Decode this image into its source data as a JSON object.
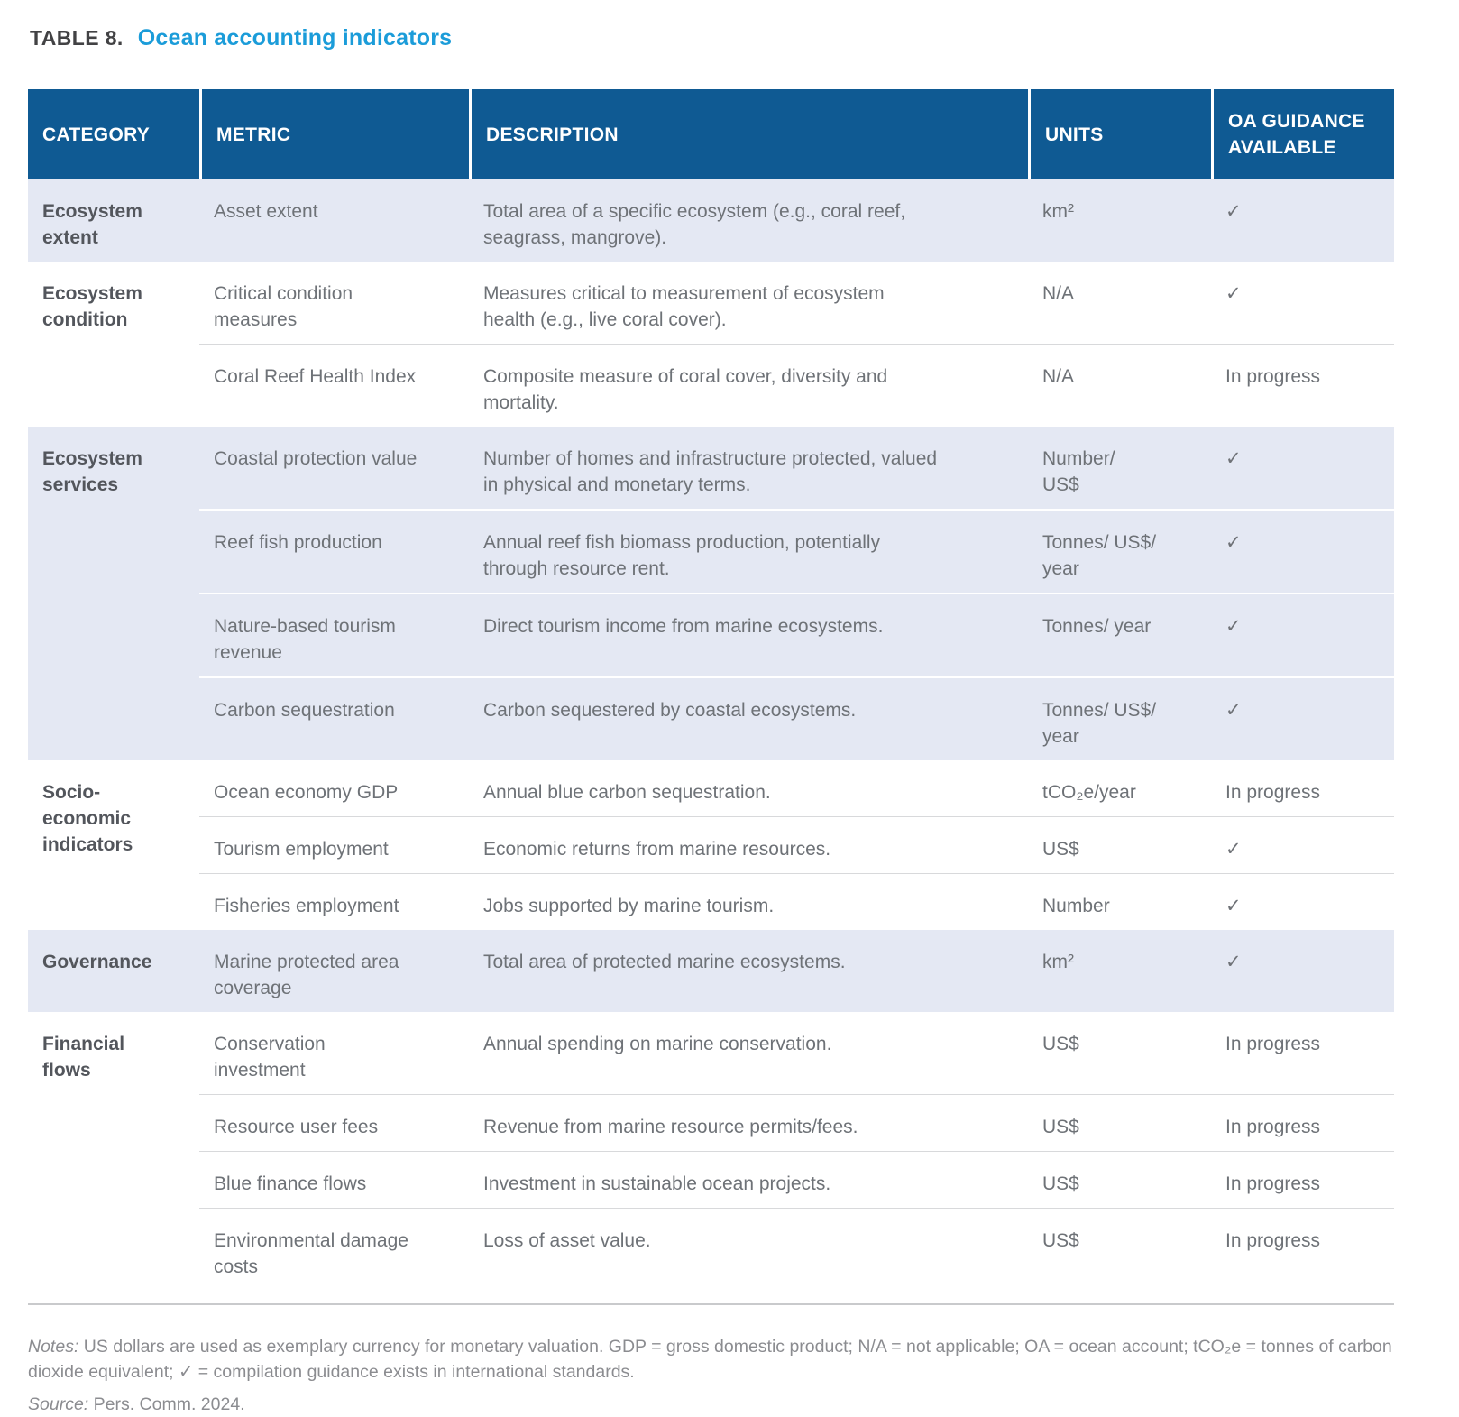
{
  "title": {
    "label": "TABLE 8.",
    "text": "Ocean accounting indicators"
  },
  "colors": {
    "header_bg": "#0F5A93",
    "shaded_row_bg": "#E4E8F3",
    "title_accent": "#1B9CD9",
    "body_text": "#6E7277"
  },
  "table": {
    "columns": [
      "CATEGORY",
      "METRIC",
      "DESCRIPTION",
      "UNITS",
      "OA GUIDANCE\nAVAILABLE"
    ],
    "groups": [
      {
        "category": "Ecosystem\nextent",
        "rows": [
          {
            "metric": "Asset extent",
            "description": "Total area of a specific ecosystem (e.g., coral reef,\nseagrass, mangrove).",
            "units": "km²",
            "guidance": "✓"
          }
        ]
      },
      {
        "category": "Ecosystem\ncondition",
        "rows": [
          {
            "metric": "Critical condition\nmeasures",
            "description": "Measures critical to measurement of ecosystem\nhealth (e.g., live coral cover).",
            "units": "N/A",
            "guidance": "✓"
          },
          {
            "metric": "Coral Reef Health Index",
            "description": "Composite measure of coral cover, diversity and\nmortality.",
            "units": "N/A",
            "guidance": "In progress"
          }
        ]
      },
      {
        "category": "Ecosystem\nservices",
        "rows": [
          {
            "metric": "Coastal protection value",
            "description": "Number of homes and infrastructure protected, valued\nin physical and monetary terms.",
            "units": "Number/\nUS$",
            "guidance": "✓"
          },
          {
            "metric": "Reef fish production",
            "description": "Annual reef fish biomass production, potentially\nthrough resource rent.",
            "units": "Tonnes/ US$/\nyear",
            "guidance": "✓"
          },
          {
            "metric": "Nature-based tourism\nrevenue",
            "description": "Direct tourism income from marine ecosystems.",
            "units": "Tonnes/ year",
            "guidance": "✓"
          },
          {
            "metric": "Carbon sequestration",
            "description": "Carbon sequestered by coastal ecosystems.",
            "units": "Tonnes/ US$/\nyear",
            "guidance": "✓"
          }
        ]
      },
      {
        "category": "Socio-\neconomic\nindicators",
        "rows": [
          {
            "metric": "Ocean economy GDP",
            "description": "Annual blue carbon sequestration.",
            "units": "tCO₂e/year",
            "guidance": "In progress"
          },
          {
            "metric": "Tourism employment",
            "description": "Economic returns from marine resources.",
            "units": "US$",
            "guidance": "✓"
          },
          {
            "metric": "Fisheries employment",
            "description": "Jobs supported by marine tourism.",
            "units": "Number",
            "guidance": "✓"
          }
        ]
      },
      {
        "category": "Governance",
        "rows": [
          {
            "metric": "Marine protected area\ncoverage",
            "description": "Total area of protected marine ecosystems.",
            "units": "km²",
            "guidance": "✓"
          }
        ]
      },
      {
        "category": "Financial\nflows",
        "rows": [
          {
            "metric": "Conservation\ninvestment",
            "description": "Annual spending on marine conservation.",
            "units": "US$",
            "guidance": "In progress"
          },
          {
            "metric": "Resource user fees",
            "description": "Revenue from marine resource permits/fees.",
            "units": "US$",
            "guidance": "In progress"
          },
          {
            "metric": "Blue finance flows",
            "description": "Investment in sustainable ocean projects.",
            "units": "US$",
            "guidance": "In progress"
          },
          {
            "metric": "Environmental damage\ncosts",
            "description": "Loss of asset value.",
            "units": "US$",
            "guidance": "In progress"
          }
        ]
      }
    ]
  },
  "footer": {
    "notes_label": "Notes:",
    "notes_text": " US dollars are used as exemplary currency for monetary valuation. GDP = gross domestic product; N/A = not applicable; OA = ocean account; tCO₂e = tonnes of carbon dioxide equivalent; ✓ = compilation guidance exists in international standards.",
    "source_label": "Source:",
    "source_text": " Pers. Comm. 2024."
  }
}
